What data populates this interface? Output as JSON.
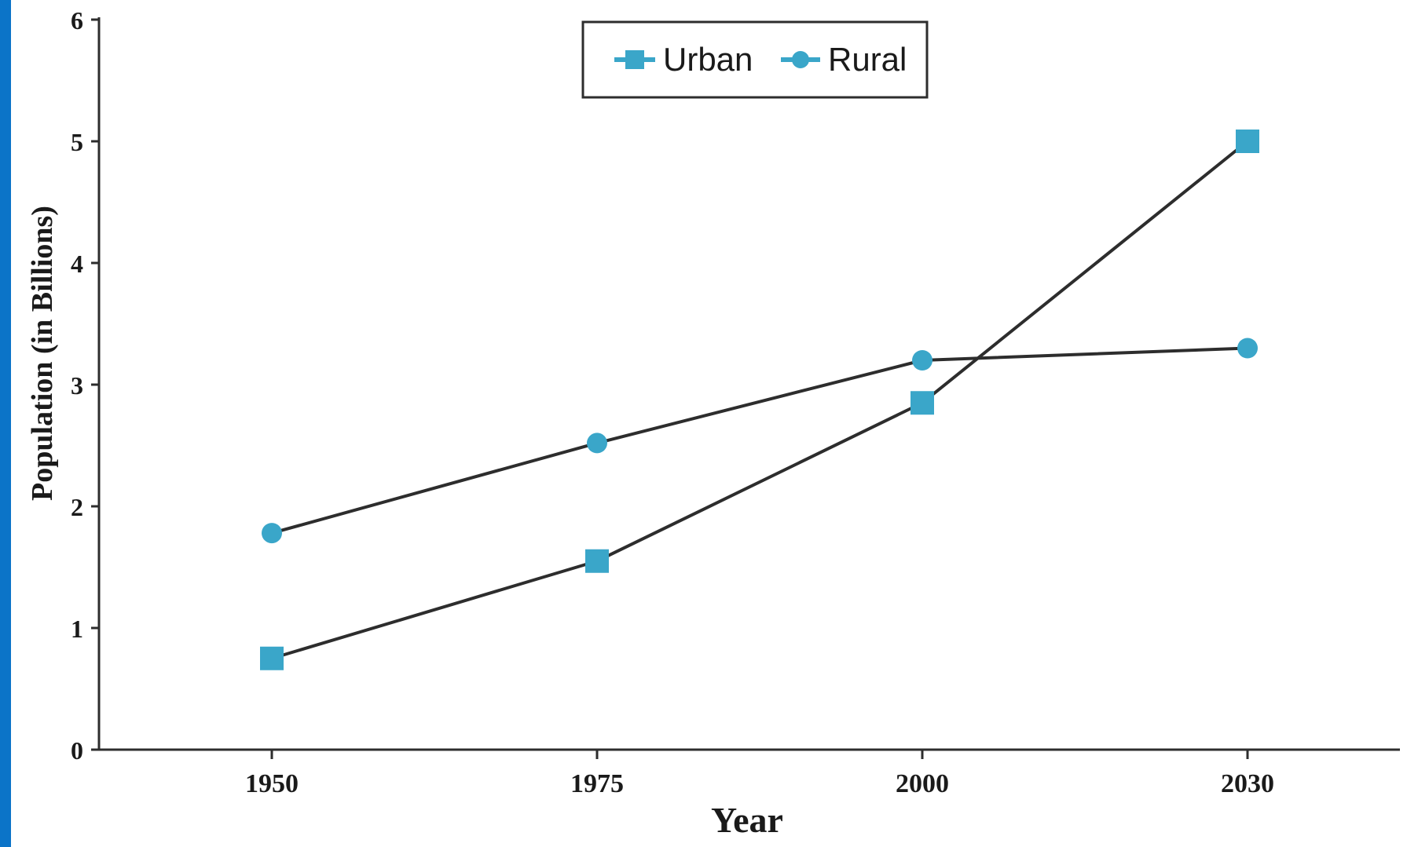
{
  "chart_data": {
    "type": "line",
    "title": "",
    "xlabel": "Year",
    "ylabel": "Population  (in Billions)",
    "categories": [
      "1950",
      "1975",
      "2000",
      "2030"
    ],
    "ylim": [
      0,
      6
    ],
    "yticks": [
      "0",
      "1",
      "2",
      "3",
      "4",
      "5",
      "6"
    ],
    "grid": false,
    "legend_position": "top-center",
    "series": [
      {
        "name": "Urban",
        "marker": "square",
        "values": [
          0.75,
          1.55,
          2.85,
          5.0
        ]
      },
      {
        "name": "Rural",
        "marker": "circle",
        "values": [
          1.78,
          2.52,
          3.2,
          3.3
        ]
      }
    ]
  },
  "colors": {
    "marker": "#3aa6c9",
    "line": "#2d2d2d",
    "axis": "#2d2d2d",
    "frame": "#0b74c8"
  }
}
